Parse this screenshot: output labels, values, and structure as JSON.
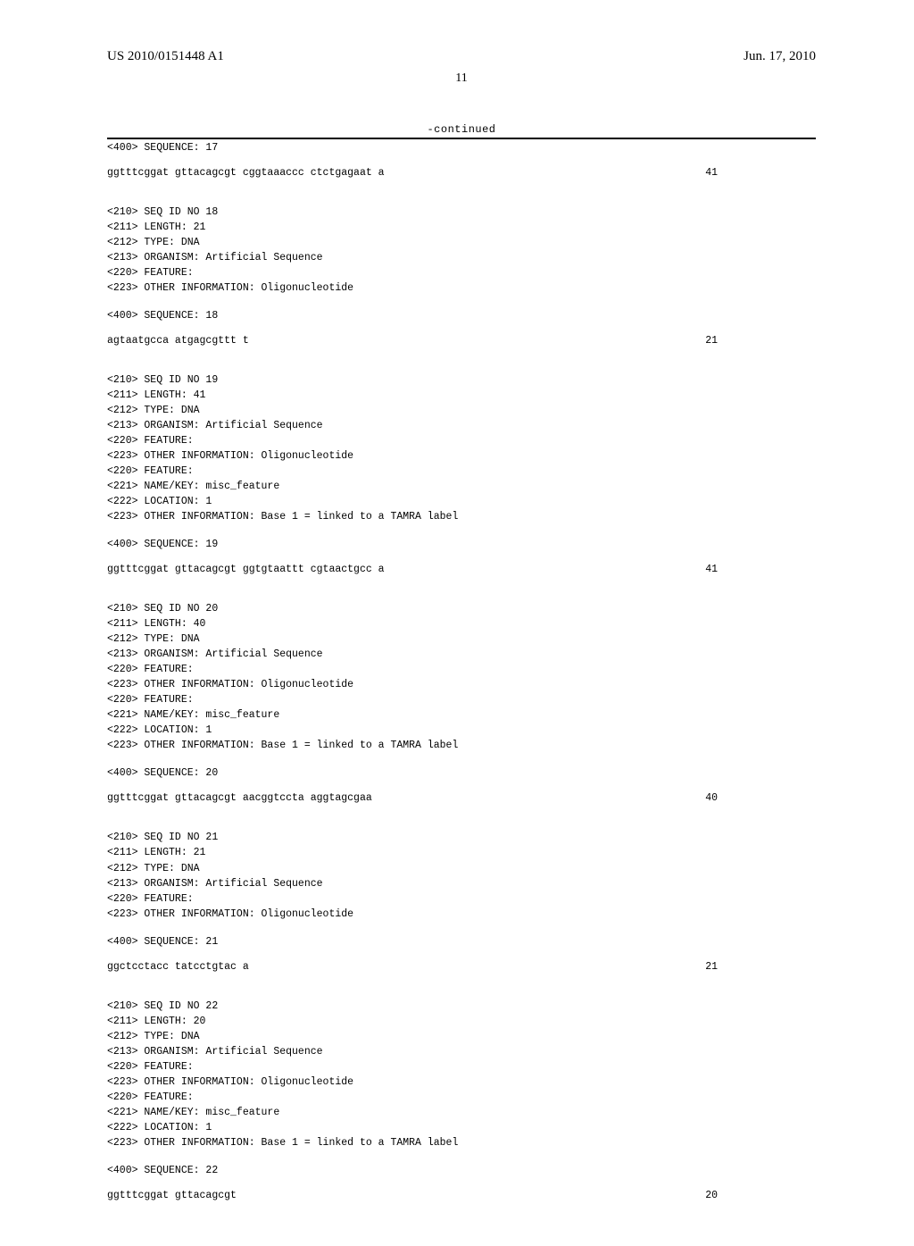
{
  "header": {
    "pub_number": "US 2010/0151448 A1",
    "pub_date": "Jun. 17, 2010",
    "page_number": "11"
  },
  "continued_label": "-continued",
  "sequences": [
    {
      "pre_lines": [
        "<400> SEQUENCE: 17"
      ],
      "seq_text": "ggtttcggat gttacagcgt cggtaaaccc ctctgagaat a",
      "seq_num": "41"
    },
    {
      "pre_lines": [
        "<210> SEQ ID NO 18",
        "<211> LENGTH: 21",
        "<212> TYPE: DNA",
        "<213> ORGANISM: Artificial Sequence",
        "<220> FEATURE:",
        "<223> OTHER INFORMATION: Oligonucleotide"
      ],
      "line_400": "<400> SEQUENCE: 18",
      "seq_text": "agtaatgcca atgagcgttt t",
      "seq_num": "21"
    },
    {
      "pre_lines": [
        "<210> SEQ ID NO 19",
        "<211> LENGTH: 41",
        "<212> TYPE: DNA",
        "<213> ORGANISM: Artificial Sequence",
        "<220> FEATURE:",
        "<223> OTHER INFORMATION: Oligonucleotide",
        "<220> FEATURE:",
        "<221> NAME/KEY: misc_feature",
        "<222> LOCATION: 1",
        "<223> OTHER INFORMATION: Base 1 = linked to a TAMRA label"
      ],
      "line_400": "<400> SEQUENCE: 19",
      "seq_text": "ggtttcggat gttacagcgt ggtgtaattt cgtaactgcc a",
      "seq_num": "41"
    },
    {
      "pre_lines": [
        "<210> SEQ ID NO 20",
        "<211> LENGTH: 40",
        "<212> TYPE: DNA",
        "<213> ORGANISM: Artificial Sequence",
        "<220> FEATURE:",
        "<223> OTHER INFORMATION: Oligonucleotide",
        "<220> FEATURE:",
        "<221> NAME/KEY: misc_feature",
        "<222> LOCATION: 1",
        "<223> OTHER INFORMATION: Base 1 = linked to a TAMRA label"
      ],
      "line_400": "<400> SEQUENCE: 20",
      "seq_text": "ggtttcggat gttacagcgt aacggtccta aggtagcgaa",
      "seq_num": "40"
    },
    {
      "pre_lines": [
        "<210> SEQ ID NO 21",
        "<211> LENGTH: 21",
        "<212> TYPE: DNA",
        "<213> ORGANISM: Artificial Sequence",
        "<220> FEATURE:",
        "<223> OTHER INFORMATION: Oligonucleotide"
      ],
      "line_400": "<400> SEQUENCE: 21",
      "seq_text": "ggctcctacc tatcctgtac a",
      "seq_num": "21"
    },
    {
      "pre_lines": [
        "<210> SEQ ID NO 22",
        "<211> LENGTH: 20",
        "<212> TYPE: DNA",
        "<213> ORGANISM: Artificial Sequence",
        "<220> FEATURE:",
        "<223> OTHER INFORMATION: Oligonucleotide",
        "<220> FEATURE:",
        "<221> NAME/KEY: misc_feature",
        "<222> LOCATION: 1",
        "<223> OTHER INFORMATION: Base 1 = linked to a TAMRA label"
      ],
      "line_400": "<400> SEQUENCE: 22",
      "seq_text": "ggtttcggat gttacagcgt",
      "seq_num": "20"
    }
  ]
}
